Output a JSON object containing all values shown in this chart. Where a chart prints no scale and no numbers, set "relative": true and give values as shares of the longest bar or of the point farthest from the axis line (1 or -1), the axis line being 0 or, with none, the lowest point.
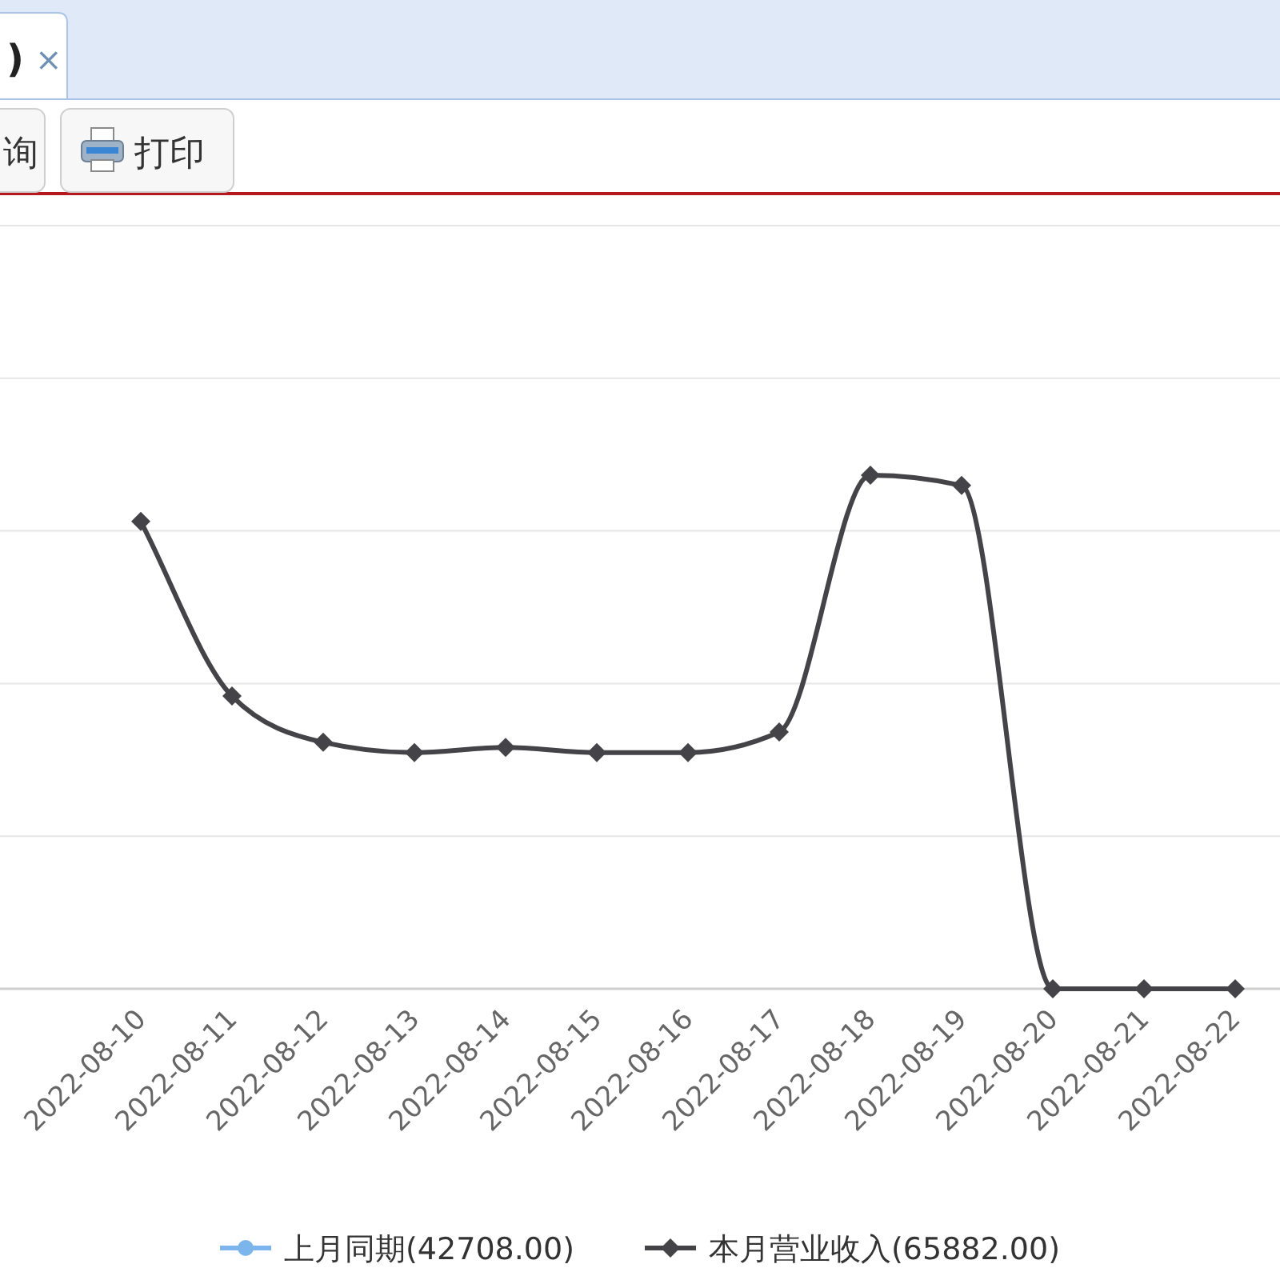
{
  "chart_data": {
    "type": "line",
    "categories": [
      "2022-08-10",
      "2022-08-11",
      "2022-08-12",
      "2022-08-13",
      "2022-08-14",
      "2022-08-15",
      "2022-08-16",
      "2022-08-17",
      "2022-08-18",
      "2022-08-19",
      "2022-08-20",
      "2022-08-21",
      "2022-08-22"
    ],
    "series": [
      {
        "name": "上月同期(42708.00)",
        "color": "#7cb5ec",
        "marker": "circle",
        "values": [
          null,
          null,
          null,
          null,
          null,
          null,
          null,
          null,
          null,
          null,
          null,
          null,
          null
        ]
      },
      {
        "name": "本月营业收入(65882.00)",
        "color": "#434348",
        "marker": "diamond",
        "values": [
          0.91,
          0.57,
          0.48,
          0.46,
          0.47,
          0.46,
          0.46,
          0.5,
          1,
          0.98,
          0,
          0,
          0
        ]
      }
    ],
    "relative": true,
    "grid": "y",
    "legend": "bottom",
    "annotations": [
      ")",
      "×",
      "询",
      "打印"
    ]
  }
}
